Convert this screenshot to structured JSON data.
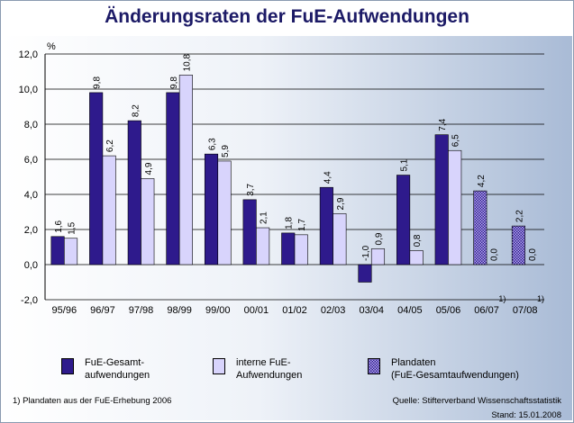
{
  "chart_data": {
    "type": "bar",
    "title": "Änderungsraten der FuE-Aufwendungen",
    "ylabel": "%",
    "xlabel": "",
    "ylim": [
      -2,
      12
    ],
    "yticks": [
      "-2,0",
      "0,0",
      "2,0",
      "4,0",
      "6,0",
      "8,0",
      "10,0",
      "12,0"
    ],
    "ytick_values": [
      -2,
      0,
      2,
      4,
      6,
      8,
      10,
      12
    ],
    "categories": [
      "95/96",
      "96/97",
      "97/98",
      "98/99",
      "99/00",
      "00/01",
      "01/02",
      "02/03",
      "03/04",
      "04/05",
      "05/06",
      "06/07",
      "07/08"
    ],
    "category_footnotes": [
      "",
      "",
      "",
      "",
      "",
      "",
      "",
      "",
      "",
      "",
      "",
      "1)",
      "1)"
    ],
    "series": [
      {
        "name": "FuE-Gesamt-aufwendungen",
        "values": [
          1.6,
          9.8,
          8.2,
          9.8,
          6.3,
          3.7,
          1.8,
          4.4,
          -1.0,
          5.1,
          7.4,
          4.2,
          2.2
        ],
        "labels": [
          "1,6",
          "9,8",
          "8,2",
          "9,8",
          "6,3",
          "3,7",
          "1,8",
          "4,4",
          "-1,0",
          "5,1",
          "7,4",
          "4,2",
          "2,2"
        ]
      },
      {
        "name": "interne FuE-Aufwendungen",
        "values": [
          1.5,
          6.2,
          4.9,
          10.8,
          5.9,
          2.1,
          1.7,
          2.9,
          0.9,
          0.8,
          6.5,
          0.0,
          0.0
        ],
        "labels": [
          "1,5",
          "6,2",
          "4,9",
          "10,8",
          "5,9",
          "2,1",
          "1,7",
          "2,9",
          "0,9",
          "0,8",
          "6,5",
          "0,0",
          "0,0"
        ]
      }
    ],
    "planned_categories": [
      "06/07",
      "07/08"
    ],
    "grid": true,
    "legend_position": "bottom"
  },
  "legend": {
    "items": [
      {
        "line1": "FuE-Gesamt-",
        "line2": "aufwendungen"
      },
      {
        "line1": "interne FuE-",
        "line2": "Aufwendungen"
      },
      {
        "line1": "Plandaten",
        "line2": "(FuE-Gesamtaufwendungen)"
      }
    ]
  },
  "footnote": "1) Plandaten aus der FuE-Erhebung 2006",
  "source": "Quelle: Stifterverband Wissenschaftsstatistik",
  "date": "Stand: 15.01.2008",
  "colors": {
    "gesamt": "#2e1a8c",
    "intern": "#d8d4fc",
    "plan": "#8c7ce0",
    "title": "#1c1a66",
    "bg_right": "#a9bbd6"
  }
}
